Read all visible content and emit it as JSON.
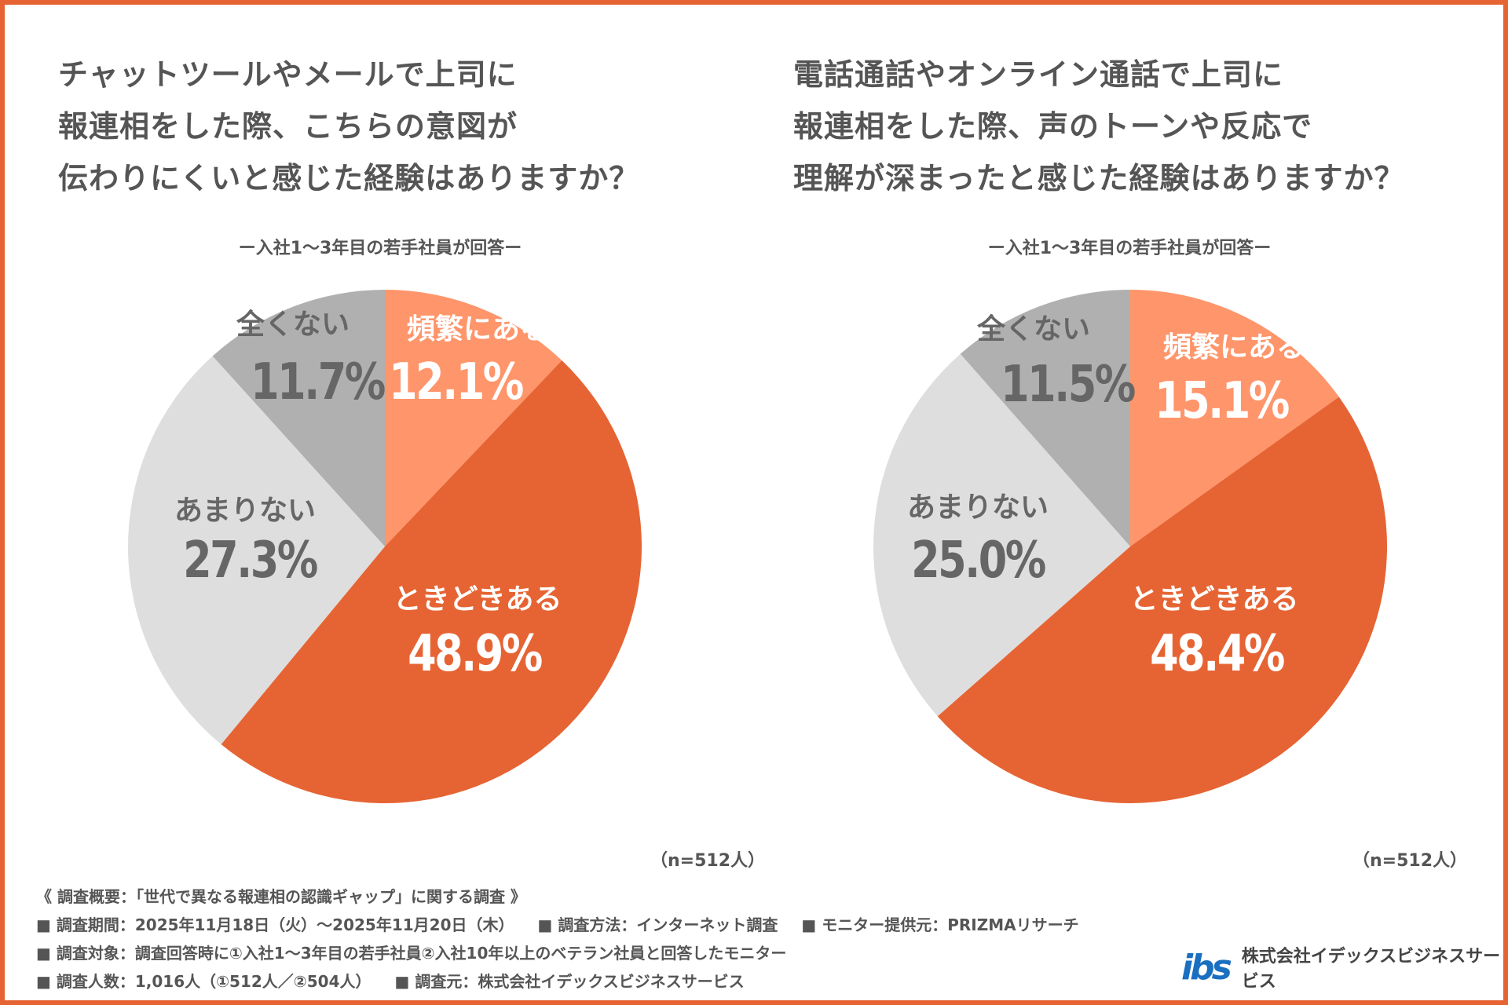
{
  "chart_data": [
    {
      "type": "pie",
      "title": [
        "チャットツールやメールで上司に",
        "報連相をした際、こちらの意図が",
        "伝わりにくいと感じた経験はありますか？"
      ],
      "subtitle": "ー入社1～3年目の若手社員が回答ー",
      "categories": [
        "頻繁にある",
        "ときどきある",
        "あまりない",
        "全くない"
      ],
      "values": [
        12.1,
        48.9,
        27.3,
        11.7
      ],
      "labels": [
        "12.1%",
        "48.9%",
        "27.3%",
        "11.7%"
      ],
      "colors": [
        "#FF956B",
        "#E66433",
        "#DEDEDE",
        "#B0B0B0"
      ],
      "note": "（n=512人）"
    },
    {
      "type": "pie",
      "title": [
        "電話通話やオンライン通話で上司に",
        "報連相をした際、声のトーンや反応で",
        "理解が深まったと感じた経験はありますか？"
      ],
      "subtitle": "ー入社1～3年目の若手社員が回答ー",
      "categories": [
        "頻繁にある",
        "ときどきある",
        "あまりない",
        "全くない"
      ],
      "values": [
        15.1,
        48.4,
        25.0,
        11.5
      ],
      "labels": [
        "15.1%",
        "48.4%",
        "25.0%",
        "11.5%"
      ],
      "colors": [
        "#FF956B",
        "#E66433",
        "#DEDEDE",
        "#B0B0B0"
      ],
      "note": "（n=512人）"
    }
  ],
  "footer": {
    "heading": "《 調査概要：「世代で異なる報連相の認識ギャップ」に関する調査 》",
    "line1": [
      "■ 調査期間：2025年11月18日（火）～2025年11月20日（木）",
      "■ 調査方法：インターネット調査",
      "■ モニター提供元：PRIZMAリサーチ"
    ],
    "line2": [
      "■ 調査対象：調査回答時に①入社1～3年目の若手社員②入社10年以上のベテラン社員と回答したモニター"
    ],
    "line3": [
      "■ 調査人数：1,016人（①512人／②504人）",
      "■ 調査元：株式会社イデックスビジネスサービス"
    ]
  },
  "logo": {
    "mark": "ibs",
    "company": "株式会社イデックスビジネスサービス"
  }
}
